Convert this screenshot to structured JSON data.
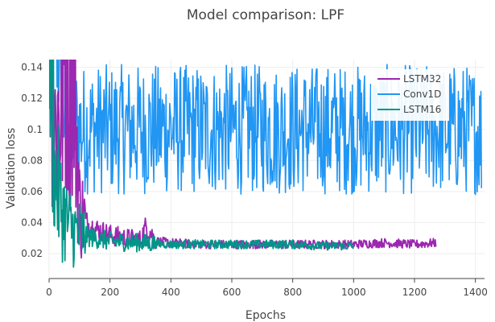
{
  "chart_data": {
    "type": "line",
    "title": "Model comparison: LPF",
    "xlabel": "Epochs",
    "ylabel": "Validation loss",
    "xlim": [
      0,
      1430
    ],
    "ylim": [
      0.004,
      0.145
    ],
    "xticks": [
      0,
      200,
      400,
      600,
      800,
      1000,
      1200,
      1400
    ],
    "xtick_labels": [
      "0",
      "200",
      "400",
      "600",
      "800",
      "1000",
      "1200",
      "1400"
    ],
    "yticks": [
      0.02,
      0.04,
      0.06,
      0.08,
      0.1,
      0.12,
      0.14
    ],
    "ytick_labels": [
      "0.02",
      "0.04",
      "0.06",
      "0.08",
      "0.1",
      "0.12",
      "0.14"
    ],
    "grid": true,
    "legend_position": "top-right",
    "series": [
      {
        "name": "LSTM32",
        "color": "#9c27b0",
        "x": [
          0,
          20,
          40,
          60,
          80,
          100,
          120,
          150,
          200,
          250,
          300,
          320,
          350,
          400,
          500,
          600,
          700,
          800,
          900,
          1000,
          1100,
          1200,
          1270
        ],
        "y": [
          0.2,
          0.1,
          0.12,
          0.15,
          0.15,
          0.05,
          0.04,
          0.036,
          0.032,
          0.03,
          0.029,
          0.038,
          0.028,
          0.027,
          0.026,
          0.026,
          0.026,
          0.026,
          0.026,
          0.026,
          0.027,
          0.026,
          0.027
        ]
      },
      {
        "name": "Conv1D",
        "color": "#2196f3",
        "x": [
          0,
          50,
          100,
          200,
          300,
          400,
          500,
          600,
          700,
          800,
          900,
          1000,
          1100,
          1200,
          1300,
          1400,
          1420
        ],
        "y": [
          0.2,
          0.11,
          0.1,
          0.1,
          0.1,
          0.1,
          0.1,
          0.1,
          0.1,
          0.1,
          0.1,
          0.1,
          0.1,
          0.1,
          0.1,
          0.1,
          0.095
        ]
      },
      {
        "name": "LSTM16",
        "color": "#009688",
        "x": [
          0,
          20,
          40,
          60,
          80,
          100,
          150,
          200,
          300,
          400,
          500,
          600,
          700,
          800,
          900,
          1000
        ],
        "y": [
          0.2,
          0.07,
          0.05,
          0.04,
          0.035,
          0.033,
          0.03,
          0.028,
          0.027,
          0.026,
          0.026,
          0.026,
          0.026,
          0.026,
          0.025,
          0.025
        ]
      }
    ]
  }
}
